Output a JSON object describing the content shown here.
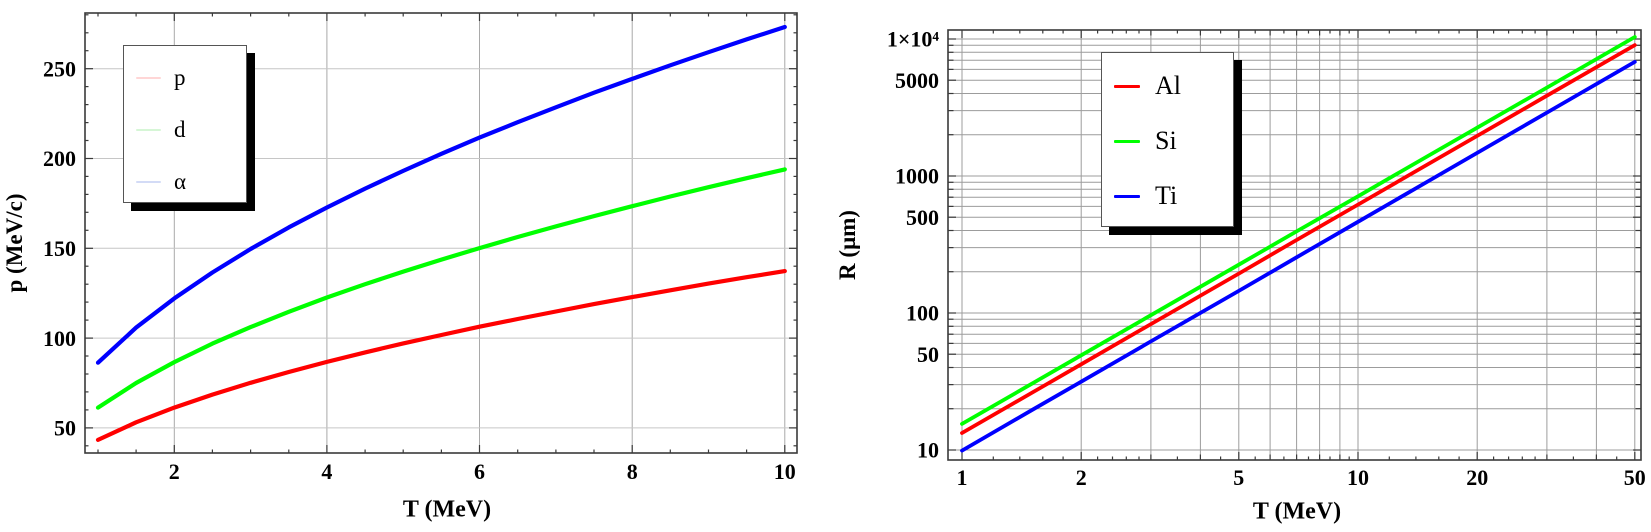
{
  "page": {
    "background": "#ffffff"
  },
  "chart_data": [
    {
      "type": "line",
      "title": "",
      "xlabel": "T (MeV)",
      "ylabel": "p (MeV/c)",
      "xscale": "linear",
      "yscale": "linear",
      "xlim": [
        0.83,
        10.16
      ],
      "ylim": [
        36,
        281
      ],
      "grid": {
        "x": [
          2,
          4,
          6,
          8,
          10
        ],
        "y": [
          50,
          100,
          150,
          200,
          250
        ],
        "x_color": "#a9a9a9",
        "y_color": "#c6c6c6"
      },
      "xticks": {
        "major": [
          2,
          4,
          6,
          8,
          10
        ],
        "labels": [
          "2",
          "4",
          "6",
          "8",
          "10"
        ],
        "medium": [],
        "minor": [
          1,
          1.5,
          2.5,
          3,
          3.5,
          4.5,
          5,
          5.5,
          6.5,
          7,
          7.5,
          8.5,
          9,
          9.5
        ]
      },
      "yticks": {
        "major": [
          50,
          100,
          150,
          200,
          250
        ],
        "labels": [
          "50",
          "100",
          "150",
          "200",
          "250"
        ],
        "medium": [],
        "minor": [
          40,
          60,
          70,
          80,
          90,
          110,
          120,
          130,
          140,
          160,
          170,
          180,
          190,
          210,
          220,
          230,
          240,
          260,
          270,
          280
        ]
      },
      "legend": {
        "position": "upper-left",
        "items": [
          {
            "label": "p",
            "color": "#ff0000",
            "swatch_color": "#ffd6d6"
          },
          {
            "label": "d",
            "color": "#00ff00",
            "swatch_color": "#d6f6d6"
          },
          {
            "label": "α",
            "color": "#0000ff",
            "swatch_color": "#d3dbf6"
          }
        ]
      },
      "series": [
        {
          "name": "p",
          "color": "#ff0000",
          "points": [
            [
              1,
              43.3
            ],
            [
              1.5,
              53.1
            ],
            [
              2,
              61.3
            ],
            [
              2.5,
              68.5
            ],
            [
              3,
              75.1
            ],
            [
              3.5,
              81.1
            ],
            [
              4,
              86.7
            ],
            [
              4.5,
              92.0
            ],
            [
              5,
              97.0
            ],
            [
              5.5,
              101.7
            ],
            [
              6,
              106.3
            ],
            [
              6.5,
              110.6
            ],
            [
              7,
              114.8
            ],
            [
              7.5,
              118.9
            ],
            [
              8,
              122.8
            ],
            [
              8.5,
              126.6
            ],
            [
              9,
              130.3
            ],
            [
              9.5,
              133.9
            ],
            [
              10,
              137.3
            ]
          ]
        },
        {
          "name": "d",
          "color": "#00ff00",
          "points": [
            [
              1,
              61.3
            ],
            [
              1.5,
              75.0
            ],
            [
              2,
              86.6
            ],
            [
              2.5,
              96.9
            ],
            [
              3,
              106.1
            ],
            [
              3.5,
              114.6
            ],
            [
              4,
              122.6
            ],
            [
              4.5,
              130.0
            ],
            [
              5,
              137.0
            ],
            [
              5.5,
              143.7
            ],
            [
              6,
              150.1
            ],
            [
              6.5,
              156.3
            ],
            [
              7,
              162.2
            ],
            [
              7.5,
              167.9
            ],
            [
              8,
              173.4
            ],
            [
              8.5,
              178.8
            ],
            [
              9,
              184.0
            ],
            [
              9.5,
              189.0
            ],
            [
              10,
              193.9
            ]
          ]
        },
        {
          "name": "α",
          "color": "#0000ff",
          "points": [
            [
              1,
              86.3
            ],
            [
              1.5,
              105.8
            ],
            [
              2,
              122.1
            ],
            [
              2.5,
              136.5
            ],
            [
              3,
              149.6
            ],
            [
              3.5,
              161.6
            ],
            [
              4,
              172.7
            ],
            [
              4.5,
              183.2
            ],
            [
              5,
              193.1
            ],
            [
              5.5,
              202.6
            ],
            [
              6,
              211.6
            ],
            [
              6.5,
              220.2
            ],
            [
              7,
              228.5
            ],
            [
              7.5,
              236.6
            ],
            [
              8,
              244.3
            ],
            [
              8.5,
              251.9
            ],
            [
              9,
              259.2
            ],
            [
              9.5,
              266.3
            ],
            [
              10,
              273.2
            ]
          ]
        }
      ]
    },
    {
      "type": "line",
      "title": "",
      "xlabel": "T (MeV)",
      "ylabel": "R (μm)",
      "xscale": "log",
      "yscale": "log",
      "xlim": [
        0.922,
        51.84
      ],
      "ylim": [
        8.45,
        11630
      ],
      "grid": {
        "x": [
          1,
          2,
          3,
          4,
          5,
          6,
          7,
          8,
          9,
          10,
          20,
          30,
          40,
          50
        ],
        "y": [
          10,
          20,
          30,
          40,
          50,
          60,
          70,
          80,
          90,
          100,
          200,
          300,
          400,
          500,
          600,
          700,
          800,
          900,
          1000,
          2000,
          3000,
          4000,
          5000,
          6000,
          7000,
          8000,
          9000,
          10000
        ],
        "x_color": "#9c9c9c",
        "y_color": "#9c9c9c"
      },
      "xticks": {
        "major": [
          1,
          2,
          5,
          10,
          20,
          50
        ],
        "labels": [
          "1",
          "2",
          "5",
          "10",
          "20",
          "50"
        ],
        "medium": [
          3,
          4,
          6,
          7,
          8,
          9,
          30,
          40
        ],
        "minor": [
          1.2,
          1.4,
          1.6,
          1.8,
          2.2,
          2.4,
          2.6,
          2.8,
          3.5,
          4.5,
          5.5,
          6.5,
          7.5,
          8.5,
          9.5,
          12,
          14,
          16,
          18,
          22,
          24,
          26,
          28,
          35,
          45
        ]
      },
      "yticks": {
        "major": [
          10,
          50,
          100,
          500,
          1000,
          5000,
          10000
        ],
        "labels": [
          "10",
          "50",
          "100",
          "500",
          "1000",
          "5000",
          "1×10⁴"
        ],
        "medium": [
          20,
          30,
          40,
          60,
          70,
          80,
          90,
          200,
          300,
          400,
          600,
          700,
          800,
          900,
          2000,
          3000,
          4000,
          6000,
          7000,
          8000,
          9000
        ],
        "minor": []
      },
      "legend": {
        "position": "upper-right",
        "items": [
          {
            "label": "Al",
            "color": "#ff0000",
            "swatch_color": "#ff0000"
          },
          {
            "label": "Si",
            "color": "#00ff00",
            "swatch_color": "#00ff00"
          },
          {
            "label": "Ti",
            "color": "#0000ff",
            "swatch_color": "#0000ff"
          }
        ]
      },
      "series": [
        {
          "name": "Al",
          "color": "#ff0000",
          "points": [
            [
              1,
              13.3
            ],
            [
              1.5,
              26.1
            ],
            [
              2,
              42.2
            ],
            [
              3,
              83
            ],
            [
              5,
              194
            ],
            [
              7,
              341
            ],
            [
              10,
              618
            ],
            [
              15,
              1214
            ],
            [
              20,
              1963
            ],
            [
              30,
              3858
            ],
            [
              50,
              9025
            ]
          ]
        },
        {
          "name": "Si",
          "color": "#00ff00",
          "points": [
            [
              1,
              15.5
            ],
            [
              1.5,
              30.4
            ],
            [
              2,
              49.1
            ],
            [
              3,
              96.3
            ],
            [
              5,
              225
            ],
            [
              7,
              394
            ],
            [
              10,
              711
            ],
            [
              15,
              1397
            ],
            [
              20,
              2252
            ],
            [
              30,
              4416
            ],
            [
              50,
              10339
            ]
          ]
        },
        {
          "name": "Ti",
          "color": "#0000ff",
          "points": [
            [
              1,
              9.9
            ],
            [
              1.5,
              19.5
            ],
            [
              2,
              31.5
            ],
            [
              3,
              62
            ],
            [
              5,
              145
            ],
            [
              7,
              255
            ],
            [
              10,
              463
            ],
            [
              15,
              911
            ],
            [
              20,
              1474
            ],
            [
              30,
              2901
            ],
            [
              50,
              6801
            ]
          ]
        }
      ]
    }
  ]
}
